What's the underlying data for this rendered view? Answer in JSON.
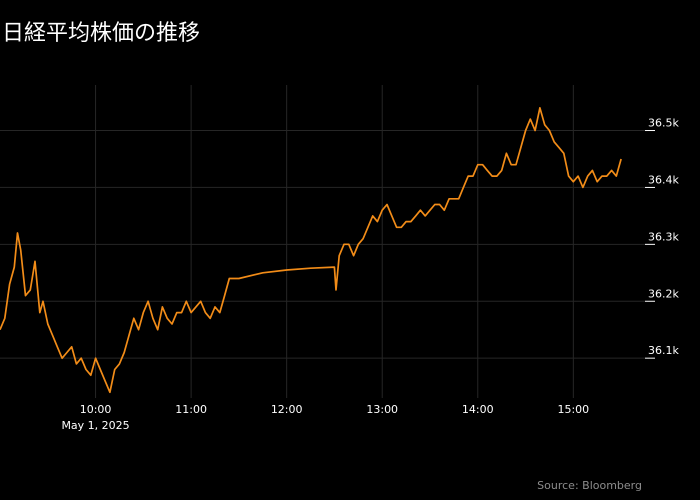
{
  "title": "日経平均株価の推移",
  "source": "Source: Bloomberg",
  "colors": {
    "background": "#000000",
    "line": "#f28c18",
    "grid": "#262626",
    "text": "#ffffff",
    "source": "#8c8c8c"
  },
  "chart_data": {
    "type": "line",
    "title": "日経平均株価の推移",
    "xlabel": "",
    "ylabel": "",
    "date_label": "May 1, 2025",
    "x_ticks": [
      "10:00",
      "11:00",
      "12:00",
      "13:00",
      "14:00",
      "15:00"
    ],
    "y_ticks": [
      "36.1k",
      "36.2k",
      "36.3k",
      "36.4k",
      "36.5k"
    ],
    "y_tick_values": [
      36100,
      36200,
      36300,
      36400,
      36500
    ],
    "xlim": [
      "09:00",
      "15:45"
    ],
    "ylim": [
      36030,
      36580
    ],
    "grid": true,
    "y_axis_side": "right",
    "series": [
      {
        "x": [
          "09:00",
          "09:03",
          "09:06",
          "09:09",
          "09:11",
          "09:13",
          "09:16",
          "09:19",
          "09:22",
          "09:25",
          "09:27",
          "09:30",
          "09:33",
          "09:36",
          "09:39",
          "09:42",
          "09:45",
          "09:48",
          "09:51",
          "09:54",
          "09:57",
          "10:00",
          "10:03",
          "10:06",
          "10:09",
          "10:12",
          "10:15",
          "10:18",
          "10:21",
          "10:24",
          "10:27",
          "10:30",
          "10:33",
          "10:36",
          "10:39",
          "10:42",
          "10:45",
          "10:48",
          "10:51",
          "10:54",
          "10:57",
          "11:00",
          "11:03",
          "11:06",
          "11:09",
          "11:12",
          "11:15",
          "11:18",
          "11:21",
          "11:24",
          "11:27",
          "11:30",
          "11:45",
          "12:00",
          "12:15",
          "12:30",
          "12:31",
          "12:33",
          "12:36",
          "12:39",
          "12:42",
          "12:45",
          "12:48",
          "12:51",
          "12:54",
          "12:57",
          "13:00",
          "13:03",
          "13:06",
          "13:09",
          "13:12",
          "13:15",
          "13:18",
          "13:21",
          "13:24",
          "13:27",
          "13:30",
          "13:33",
          "13:36",
          "13:39",
          "13:42",
          "13:45",
          "13:48",
          "13:51",
          "13:54",
          "13:57",
          "14:00",
          "14:03",
          "14:06",
          "14:09",
          "14:12",
          "14:15",
          "14:18",
          "14:21",
          "14:24",
          "14:27",
          "14:30",
          "14:33",
          "14:36",
          "14:39",
          "14:42",
          "14:45",
          "14:48",
          "14:51",
          "14:54",
          "14:57",
          "15:00",
          "15:03",
          "15:06",
          "15:09",
          "15:12",
          "15:15",
          "15:18",
          "15:21",
          "15:24",
          "15:27",
          "15:30"
        ],
        "y": [
          36150,
          36170,
          36230,
          36260,
          36320,
          36290,
          36210,
          36220,
          36270,
          36180,
          36200,
          36160,
          36140,
          36120,
          36100,
          36110,
          36120,
          36090,
          36100,
          36080,
          36070,
          36100,
          36080,
          36060,
          36040,
          36080,
          36090,
          36110,
          36140,
          36170,
          36150,
          36180,
          36200,
          36170,
          36150,
          36190,
          36170,
          36160,
          36180,
          36180,
          36200,
          36180,
          36190,
          36200,
          36180,
          36170,
          36190,
          36180,
          36210,
          36240,
          36240,
          36240,
          36250,
          36255,
          36258,
          36260,
          36220,
          36280,
          36300,
          36300,
          36280,
          36300,
          36310,
          36330,
          36350,
          36340,
          36360,
          36370,
          36350,
          36330,
          36330,
          36340,
          36340,
          36350,
          36360,
          36350,
          36360,
          36370,
          36370,
          36360,
          36380,
          36380,
          36380,
          36400,
          36420,
          36420,
          36440,
          36440,
          36430,
          36420,
          36420,
          36430,
          36460,
          36440,
          36440,
          36470,
          36500,
          36520,
          36500,
          36540,
          36510,
          36500,
          36480,
          36470,
          36460,
          36420,
          36410,
          36420,
          36400,
          36420,
          36430,
          36410,
          36420,
          36420,
          36430,
          36420,
          36450
        ],
        "gap": [
          "11:30",
          "12:30"
        ]
      }
    ],
    "source": "Source: Bloomberg"
  }
}
